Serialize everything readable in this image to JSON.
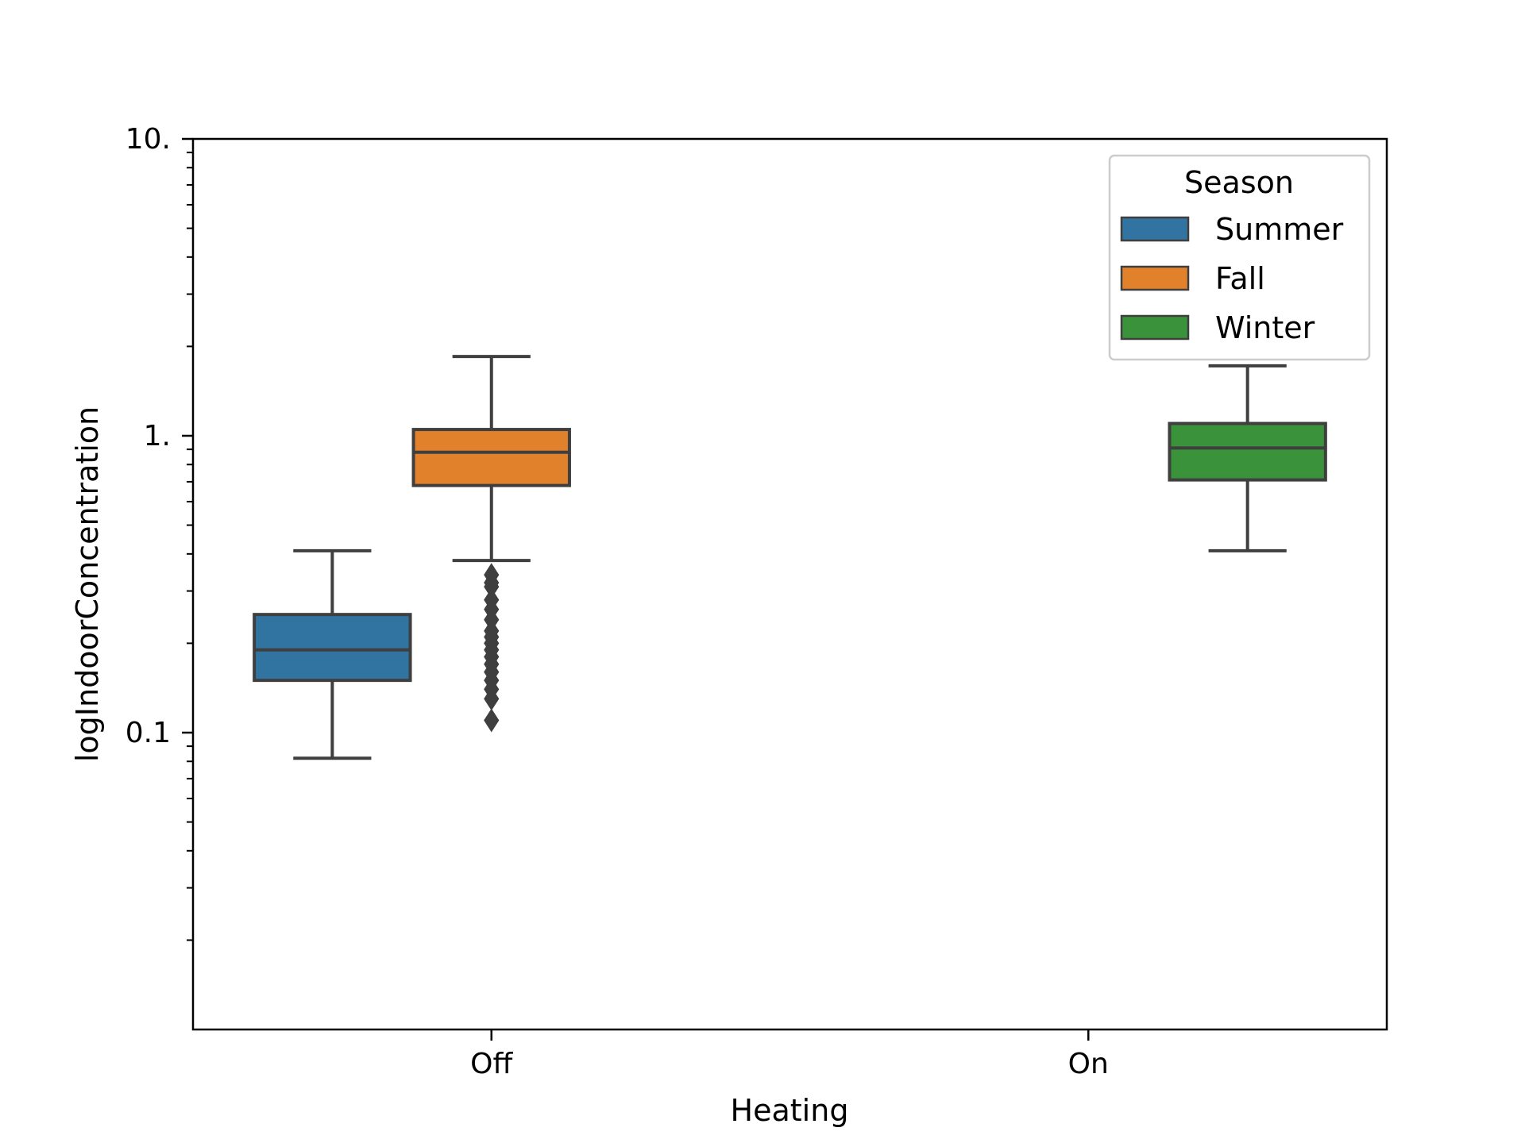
{
  "chart_data": {
    "type": "box",
    "xlabel": "Heating",
    "ylabel": "logIndoorConcentration",
    "yscale": "log",
    "ylim": [
      0.01,
      10
    ],
    "y_ticks": [
      {
        "value": 10,
        "label": "10."
      },
      {
        "value": 1,
        "label": "1."
      },
      {
        "value": 0.1,
        "label": "0.1"
      }
    ],
    "categories": [
      "Off",
      "On"
    ],
    "legend": {
      "title": "Season",
      "position": "top-right"
    },
    "series": [
      {
        "name": "Summer",
        "color": "#3274a1",
        "boxes": [
          {
            "category": "Off",
            "whisker_low": 0.082,
            "q1": 0.15,
            "median": 0.19,
            "q3": 0.25,
            "whisker_high": 0.41,
            "outliers": []
          }
        ]
      },
      {
        "name": "Fall",
        "color": "#e1812c",
        "boxes": [
          {
            "category": "Off",
            "whisker_low": 0.38,
            "q1": 0.68,
            "median": 0.88,
            "q3": 1.05,
            "whisker_high": 1.85,
            "outliers": [
              0.34,
              0.32,
              0.31,
              0.28,
              0.26,
              0.24,
              0.22,
              0.21,
              0.2,
              0.19,
              0.18,
              0.17,
              0.16,
              0.15,
              0.14,
              0.13,
              0.11
            ]
          }
        ]
      },
      {
        "name": "Winter",
        "color": "#3a923a",
        "boxes": [
          {
            "category": "On",
            "whisker_low": 0.41,
            "q1": 0.71,
            "median": 0.91,
            "q3": 1.1,
            "whisker_high": 1.72,
            "outliers": []
          }
        ]
      }
    ]
  }
}
